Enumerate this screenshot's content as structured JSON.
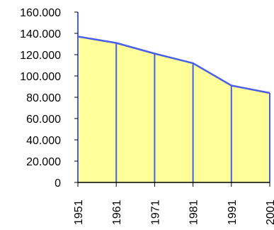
{
  "colors": {
    "fill": "#ffff99",
    "line": "#4a5fe8",
    "axis": "#000000",
    "text": "#000000"
  },
  "chart_data": {
    "type": "area",
    "title": "",
    "xlabel": "",
    "ylabel": "",
    "x": [
      "1951",
      "1961",
      "1971",
      "1981",
      "1991",
      "2001"
    ],
    "values": [
      137000,
      131000,
      121000,
      112000,
      91000,
      84000
    ],
    "ylim": [
      0,
      160000
    ],
    "yticks": [
      0,
      20000,
      40000,
      60000,
      80000,
      100000,
      120000,
      140000,
      160000
    ],
    "ytick_labels": [
      "0",
      "20.000",
      "40.000",
      "60.000",
      "80.000",
      "100.000",
      "120.000",
      "140.000",
      "160.000"
    ],
    "grid": false,
    "legend": "none",
    "vertical_drop_lines": true
  }
}
